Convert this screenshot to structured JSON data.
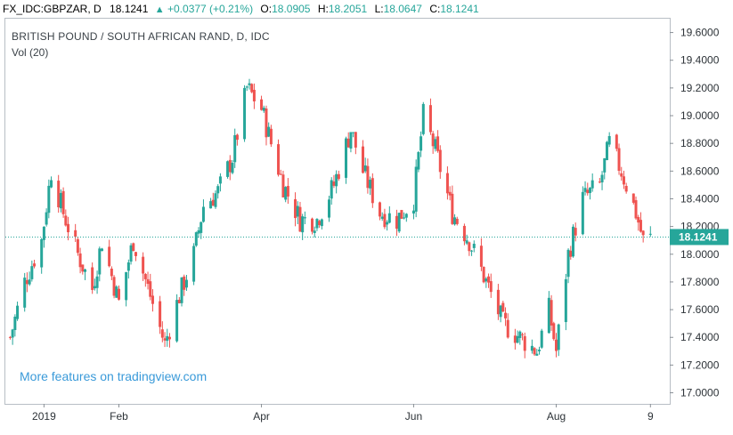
{
  "header": {
    "symbol": "FX_IDC:GBPZAR, D",
    "last": "18.1241",
    "change": "+0.0377 (+0.21%)",
    "open_label": "O:",
    "open": "18.0905",
    "high_label": "H:",
    "high": "18.2051",
    "low_label": "L:",
    "low": "18.0647",
    "close_label": "C:",
    "close": "18.1241",
    "up_icon": "triangle-up-icon"
  },
  "colors": {
    "up": "#26a69a",
    "down": "#ef5350",
    "price_line": "#26a69a",
    "link": "#3a9ad9"
  },
  "promo_text": "More features on tradingview.com",
  "chart_data": {
    "type": "candlestick",
    "title": "BRITISH POUND / SOUTH AFRICAN RAND, D, IDC",
    "indicator": "Vol (20)",
    "ylim": [
      16.92,
      19.7
    ],
    "y_ticks": [
      "19.6000",
      "19.4000",
      "19.2000",
      "19.0000",
      "18.8000",
      "18.6000",
      "18.4000",
      "18.2000",
      "18.0000",
      "17.8000",
      "17.6000",
      "17.4000",
      "17.2000",
      "17.0000"
    ],
    "x_ticks": [
      "2019",
      "Feb",
      "Apr",
      "Jun",
      "Aug",
      "9"
    ],
    "last_price_label": "18.1241",
    "last_price": 18.1241,
    "grid": false,
    "candles_approx": [
      {
        "x": "2018-12-18",
        "close": 17.4
      },
      {
        "x": "2018-12-24",
        "close": 17.8
      },
      {
        "x": "2018-12-31",
        "close": 18.1
      },
      {
        "x": "2019-01-04",
        "close": 18.6
      },
      {
        "x": "2019-01-09",
        "close": 18.3
      },
      {
        "x": "2019-01-15",
        "close": 18.0
      },
      {
        "x": "2019-01-21",
        "close": 17.75
      },
      {
        "x": "2019-01-25",
        "close": 18.1
      },
      {
        "x": "2019-02-01",
        "close": 17.65
      },
      {
        "x": "2019-02-07",
        "close": 18.1
      },
      {
        "x": "2019-02-14",
        "close": 17.7
      },
      {
        "x": "2019-02-20",
        "close": 17.35
      },
      {
        "x": "2019-02-26",
        "close": 17.7
      },
      {
        "x": "2019-03-04",
        "close": 18.0
      },
      {
        "x": "2019-03-08",
        "close": 18.35
      },
      {
        "x": "2019-03-14",
        "close": 18.45
      },
      {
        "x": "2019-03-20",
        "close": 18.7
      },
      {
        "x": "2019-03-26",
        "close": 19.2
      },
      {
        "x": "2019-04-01",
        "close": 19.05
      },
      {
        "x": "2019-04-05",
        "close": 18.8
      },
      {
        "x": "2019-04-10",
        "close": 18.5
      },
      {
        "x": "2019-04-17",
        "close": 18.25
      },
      {
        "x": "2019-04-24",
        "close": 18.25
      },
      {
        "x": "2019-05-01",
        "close": 18.5
      },
      {
        "x": "2019-05-08",
        "close": 18.9
      },
      {
        "x": "2019-05-13",
        "close": 18.6
      },
      {
        "x": "2019-05-20",
        "close": 18.3
      },
      {
        "x": "2019-05-27",
        "close": 18.25
      },
      {
        "x": "2019-06-03",
        "close": 18.4
      },
      {
        "x": "2019-06-07",
        "close": 19.0
      },
      {
        "x": "2019-06-12",
        "close": 18.75
      },
      {
        "x": "2019-06-19",
        "close": 18.3
      },
      {
        "x": "2019-06-26",
        "close": 18.1
      },
      {
        "x": "2019-07-03",
        "close": 17.8
      },
      {
        "x": "2019-07-10",
        "close": 17.5
      },
      {
        "x": "2019-07-17",
        "close": 17.4
      },
      {
        "x": "2019-07-24",
        "close": 17.3
      },
      {
        "x": "2019-07-29",
        "close": 17.6
      },
      {
        "x": "2019-08-01",
        "close": 17.3
      },
      {
        "x": "2019-08-06",
        "close": 18.0
      },
      {
        "x": "2019-08-12",
        "close": 18.4
      },
      {
        "x": "2019-08-19",
        "close": 18.5
      },
      {
        "x": "2019-08-23",
        "close": 18.8
      },
      {
        "x": "2019-08-28",
        "close": 18.6
      },
      {
        "x": "2019-09-03",
        "close": 18.3
      },
      {
        "x": "2019-09-06",
        "close": 18.1
      },
      {
        "x": "2019-09-10",
        "close": 18.12
      }
    ]
  }
}
